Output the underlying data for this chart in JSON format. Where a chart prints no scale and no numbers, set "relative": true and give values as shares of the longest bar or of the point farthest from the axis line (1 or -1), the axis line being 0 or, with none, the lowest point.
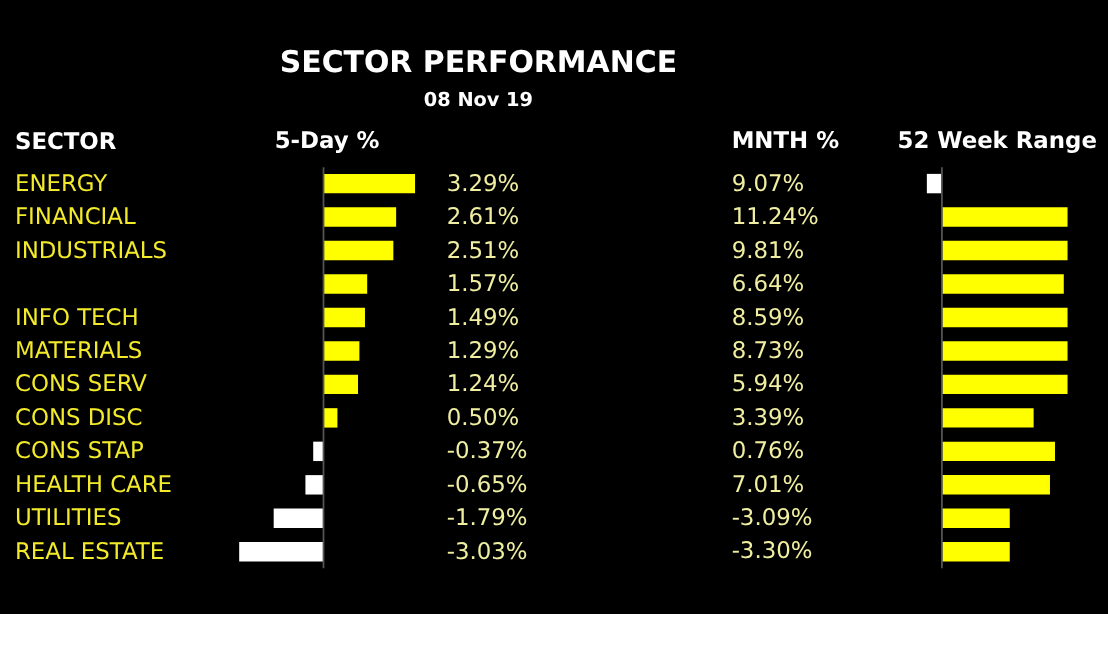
{
  "chart_data": [
    {
      "type": "bar",
      "orientation": "horizontal",
      "title": "SECTOR PERFORMANCE",
      "subtitle": "08 Nov 19",
      "ylabel": "SECTOR",
      "xlabel": "5-Day %",
      "categories": [
        "ENERGY",
        "FINANCIAL",
        "INDUSTRIALS",
        null,
        "INFO TECH",
        "MATERIALS",
        "CONS SERV",
        "CONS DISC",
        "CONS STAP",
        "HEALTH CARE",
        "UTILITIES",
        "REAL ESTATE"
      ],
      "values": [
        3.29,
        2.61,
        2.51,
        1.57,
        1.49,
        1.29,
        1.24,
        0.5,
        -0.37,
        -0.65,
        -1.79,
        -3.03
      ],
      "value_labels": [
        "3.29%",
        "2.61%",
        "2.51%",
        "1.57%",
        "1.49%",
        "1.29%",
        "1.24%",
        "0.50%",
        "-0.37%",
        "-0.65%",
        "-1.79%",
        "-3.03%"
      ],
      "colors": [
        "#ffff00",
        "#ffff00",
        "#ffff00",
        "#ffff00",
        "#ffff00",
        "#ffff00",
        "#ffff00",
        "#ffff00",
        "#ffffff",
        "#ffffff",
        "#ffffff",
        "#ffffff"
      ],
      "tick_labels": "y"
    },
    {
      "type": "other",
      "xlabel": "MNTH %",
      "values": [
        9.07,
        11.24,
        9.81,
        6.64,
        8.59,
        8.73,
        5.94,
        3.39,
        0.76,
        7.01,
        -3.09,
        -3.3
      ],
      "value_labels": [
        "9.07%",
        "11.24%",
        "9.81%",
        "6.64%",
        "8.59%",
        "8.73%",
        "5.94%",
        "3.39%",
        "0.76%",
        "7.01%",
        "-3.09%",
        "-3.30%"
      ]
    },
    {
      "type": "bar",
      "orientation": "horizontal",
      "relative": true,
      "xlabel": "52 Week Range",
      "tick_labels": false,
      "values": [
        -0.12,
        1.0,
        1.0,
        0.97,
        1.0,
        1.0,
        1.0,
        0.73,
        0.9,
        0.86,
        0.54,
        0.54
      ],
      "colors": [
        "#ffffff",
        "#ffff00",
        "#ffff00",
        "#ffff00",
        "#ffff00",
        "#ffff00",
        "#ffff00",
        "#ffff00",
        "#ffff00",
        "#ffff00",
        "#ffff00",
        "#ffff00"
      ]
    }
  ]
}
